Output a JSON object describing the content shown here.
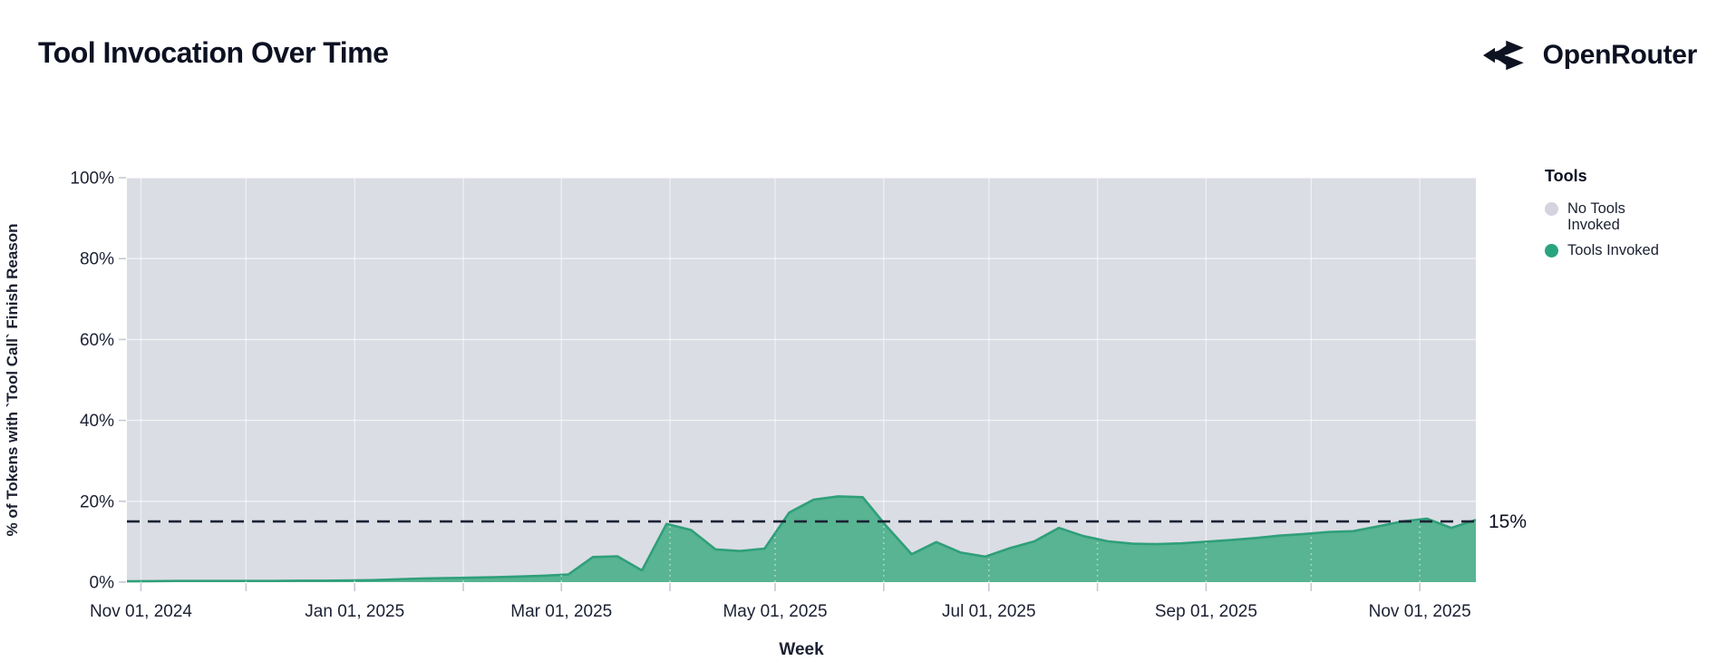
{
  "header": {
    "title": "Tool Invocation Over Time",
    "brand": "OpenRouter"
  },
  "legend": {
    "title": "Tools",
    "items": [
      {
        "label": "No Tools Invoked",
        "color": "#d3d4dd"
      },
      {
        "label": "Tools Invoked",
        "color": "#2aa380"
      }
    ]
  },
  "chart_data": {
    "type": "area",
    "stacked_percent": true,
    "title": "Tool Invocation Over Time",
    "xlabel": "Week",
    "ylabel": "% of Tokens with `Tool Call` Finish Reason",
    "ylim": [
      0,
      100
    ],
    "plot_background": "#dbdde4",
    "grid_color": "#ffffff",
    "tick_color": "#c6c9d3",
    "y_ticks": [
      {
        "value": 0,
        "label": "0%"
      },
      {
        "value": 20,
        "label": "20%"
      },
      {
        "value": 40,
        "label": "40%"
      },
      {
        "value": 60,
        "label": "60%"
      },
      {
        "value": 80,
        "label": "80%"
      },
      {
        "value": 100,
        "label": "100%"
      }
    ],
    "x_ticks": [
      {
        "date": "2024-11-01",
        "label": "Nov 01, 2024"
      },
      {
        "date": "2024-12-01",
        "label": ""
      },
      {
        "date": "2025-01-01",
        "label": "Jan 01, 2025"
      },
      {
        "date": "2025-02-01",
        "label": ""
      },
      {
        "date": "2025-03-01",
        "label": "Mar 01, 2025"
      },
      {
        "date": "2025-04-01",
        "label": ""
      },
      {
        "date": "2025-05-01",
        "label": "May 01, 2025"
      },
      {
        "date": "2025-06-01",
        "label": ""
      },
      {
        "date": "2025-07-01",
        "label": "Jul 01, 2025"
      },
      {
        "date": "2025-08-01",
        "label": ""
      },
      {
        "date": "2025-09-01",
        "label": "Sep 01, 2025"
      },
      {
        "date": "2025-10-01",
        "label": ""
      },
      {
        "date": "2025-11-01",
        "label": "Nov 01, 2025"
      }
    ],
    "reference_line": {
      "value": 15,
      "label": "15%",
      "style": "dashed",
      "color": "#1c2234"
    },
    "series": [
      {
        "name": "Tools Invoked",
        "fill": "#58b492",
        "stroke": "#2f9f7a",
        "weeks": [
          "2024-10-28",
          "2024-11-04",
          "2024-11-11",
          "2024-11-18",
          "2024-11-25",
          "2024-12-02",
          "2024-12-09",
          "2024-12-16",
          "2024-12-23",
          "2024-12-30",
          "2025-01-06",
          "2025-01-13",
          "2025-01-20",
          "2025-01-27",
          "2025-02-03",
          "2025-02-10",
          "2025-02-17",
          "2025-02-24",
          "2025-03-03",
          "2025-03-10",
          "2025-03-17",
          "2025-03-24",
          "2025-03-31",
          "2025-04-07",
          "2025-04-14",
          "2025-04-21",
          "2025-04-28",
          "2025-05-05",
          "2025-05-12",
          "2025-05-19",
          "2025-05-26",
          "2025-06-02",
          "2025-06-09",
          "2025-06-16",
          "2025-06-23",
          "2025-06-30",
          "2025-07-07",
          "2025-07-14",
          "2025-07-21",
          "2025-07-28",
          "2025-08-04",
          "2025-08-11",
          "2025-08-18",
          "2025-08-25",
          "2025-09-01",
          "2025-09-08",
          "2025-09-15",
          "2025-09-22",
          "2025-09-29",
          "2025-10-06",
          "2025-10-13",
          "2025-10-20",
          "2025-10-27",
          "2025-11-03",
          "2025-11-10",
          "2025-11-17"
        ],
        "values": [
          0.2,
          0.25,
          0.3,
          0.3,
          0.3,
          0.3,
          0.3,
          0.35,
          0.35,
          0.4,
          0.5,
          0.7,
          0.9,
          1.0,
          1.1,
          1.2,
          1.4,
          1.6,
          1.9,
          6.2,
          6.4,
          2.9,
          14.4,
          12.9,
          8.1,
          7.7,
          8.3,
          17.2,
          20.4,
          21.2,
          21.0,
          13.6,
          6.9,
          9.9,
          7.3,
          6.3,
          8.4,
          10.1,
          13.4,
          11.4,
          10.1,
          9.5,
          9.4,
          9.6,
          10.0,
          10.4,
          10.9,
          11.5,
          11.9,
          12.4,
          12.6,
          13.8,
          15.0,
          15.7,
          13.4,
          15.4
        ]
      },
      {
        "name": "No Tools Invoked",
        "fill": "#dbdde4",
        "values": "complement_to_100"
      }
    ]
  }
}
